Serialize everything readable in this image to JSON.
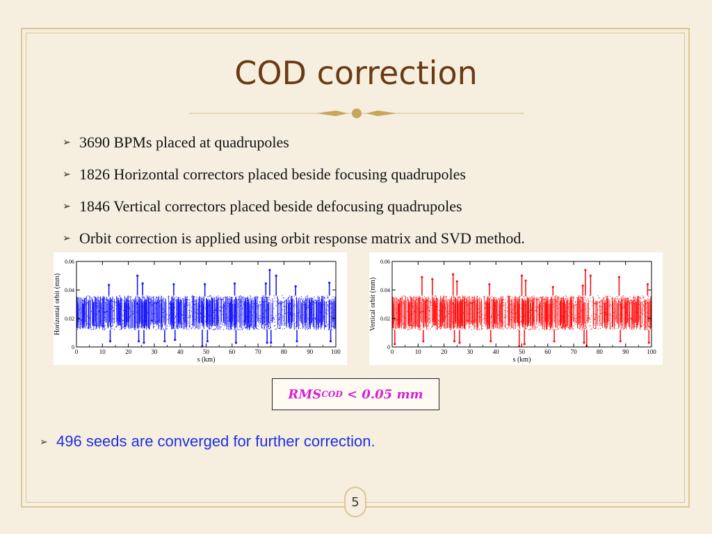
{
  "slide": {
    "title": "COD correction",
    "bullets": [
      "3690 BPMs placed at quadrupoles",
      "1826 Horizontal correctors placed beside focusing quadrupoles",
      "1846 Vertical correctors placed beside defocusing quadrupoles",
      "Orbit correction is applied using orbit response matrix and SVD method."
    ],
    "bullet_icon": "arrow-bullet-icon",
    "rms": {
      "main": "RMS",
      "sub": "COD",
      "rest": " < 0.05 mm"
    },
    "seeds_text": "496 seeds are converged for further correction.",
    "page_number": "5",
    "colors": {
      "title": "#6b3a12",
      "frame": "#dcc595",
      "seeds": "#1d2fe0",
      "rms": "#d81fd8"
    }
  },
  "chart_data": [
    {
      "type": "scatter",
      "xlabel": "s (km)",
      "ylabel": "Horizontal orbit (mm)",
      "xlim": [
        0,
        100
      ],
      "ylim": [
        0,
        0.06
      ],
      "xticks": [
        "0",
        "10",
        "20",
        "30",
        "40",
        "50",
        "60",
        "70",
        "80",
        "90",
        "100"
      ],
      "yticks": [
        "0",
        "0.02",
        "0.04",
        "0.06"
      ],
      "color": "#1515ff",
      "band": [
        0.012,
        0.036
      ],
      "spikes": [
        [
          12.5,
          0.0435
        ],
        [
          13,
          0.004
        ],
        [
          23.5,
          0.05
        ],
        [
          24,
          0.004
        ],
        [
          25.5,
          0.0445
        ],
        [
          26,
          0.003
        ],
        [
          34,
          0.004
        ],
        [
          37.5,
          0.044
        ],
        [
          38,
          0.005
        ],
        [
          48.5,
          0.0005
        ],
        [
          49.5,
          0.044
        ],
        [
          50.5,
          0.004
        ],
        [
          61,
          0.0445
        ],
        [
          61.5,
          0.003
        ],
        [
          73,
          0.0445
        ],
        [
          73.5,
          0.003
        ],
        [
          74.5,
          0.054
        ],
        [
          75,
          0.003
        ],
        [
          77,
          0.05
        ],
        [
          84.5,
          0.0425
        ],
        [
          85,
          0.004
        ],
        [
          97.5,
          0.045
        ],
        [
          98,
          0.004
        ]
      ]
    },
    {
      "type": "scatter",
      "xlabel": "s (km)",
      "ylabel": "Vertical orbit (mm)",
      "xlim": [
        0,
        100
      ],
      "ylim": [
        0,
        0.06
      ],
      "xticks": [
        "0",
        "10",
        "20",
        "30",
        "40",
        "50",
        "60",
        "70",
        "80",
        "90",
        "100"
      ],
      "yticks": [
        "0",
        "0.02",
        "0.04",
        "0.06"
      ],
      "color": "#ff1010",
      "band": [
        0.012,
        0.036
      ],
      "spikes": [
        [
          1,
          0.002
        ],
        [
          11.5,
          0.049
        ],
        [
          12,
          0.004
        ],
        [
          15.5,
          0.0475
        ],
        [
          23.5,
          0.051
        ],
        [
          24,
          0.004
        ],
        [
          25,
          0.046
        ],
        [
          26,
          0.003
        ],
        [
          37.5,
          0.044
        ],
        [
          38,
          0.004
        ],
        [
          49,
          0.0005
        ],
        [
          50,
          0.05
        ],
        [
          51,
          0.002
        ],
        [
          51.5,
          0.0465
        ],
        [
          62,
          0.042
        ],
        [
          62.5,
          0.004
        ],
        [
          73.5,
          0.043
        ],
        [
          74,
          0.003
        ],
        [
          74.5,
          0.054
        ],
        [
          75,
          0.001
        ],
        [
          76.5,
          0.05
        ],
        [
          87.5,
          0.049
        ],
        [
          88,
          0.004
        ],
        [
          98.5,
          0.044
        ],
        [
          99,
          0.003
        ]
      ]
    }
  ]
}
